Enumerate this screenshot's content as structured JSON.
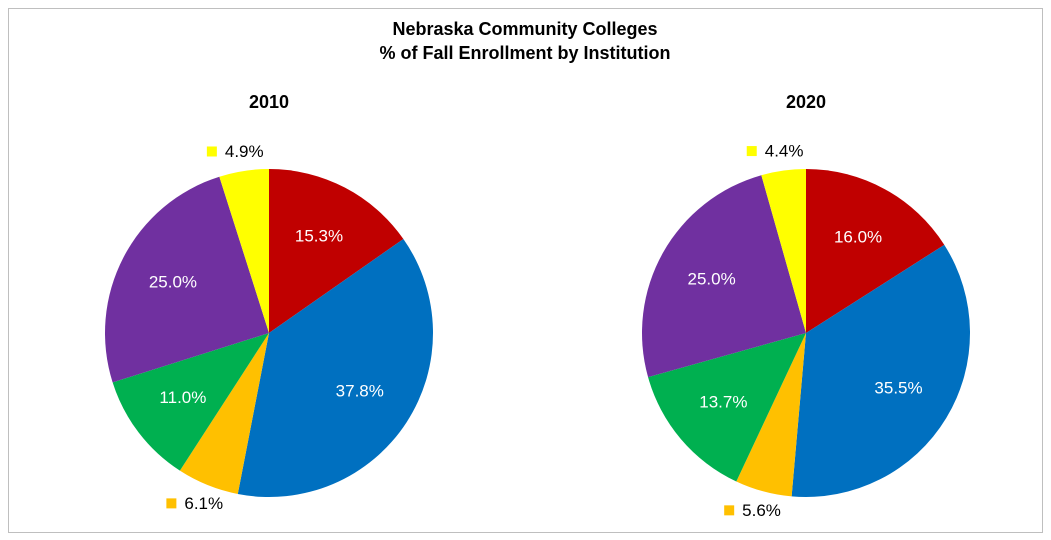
{
  "title": [
    "Nebraska Community Colleges",
    "% of Fall Enrollment by Institution"
  ],
  "chart_data": [
    {
      "type": "pie",
      "title": "2010",
      "values": [
        15.3,
        37.8,
        6.1,
        11.0,
        25.0,
        4.9
      ],
      "value_labels": [
        "15.3%",
        "37.8%",
        "6.1%",
        "11.0%",
        "25.0%",
        "4.9%"
      ],
      "colors": [
        "#c00000",
        "#0070c0",
        "#ffc000",
        "#00b050",
        "#7030a0",
        "#ffff00"
      ]
    },
    {
      "type": "pie",
      "title": "2020",
      "values": [
        16.0,
        35.5,
        5.6,
        13.7,
        25.0,
        4.4
      ],
      "value_labels": [
        "16.0%",
        "35.5%",
        "5.6%",
        "13.7%",
        "25.0%",
        "4.4%"
      ],
      "colors": [
        "#c00000",
        "#0070c0",
        "#ffc000",
        "#00b050",
        "#7030a0",
        "#ffff00"
      ]
    }
  ]
}
